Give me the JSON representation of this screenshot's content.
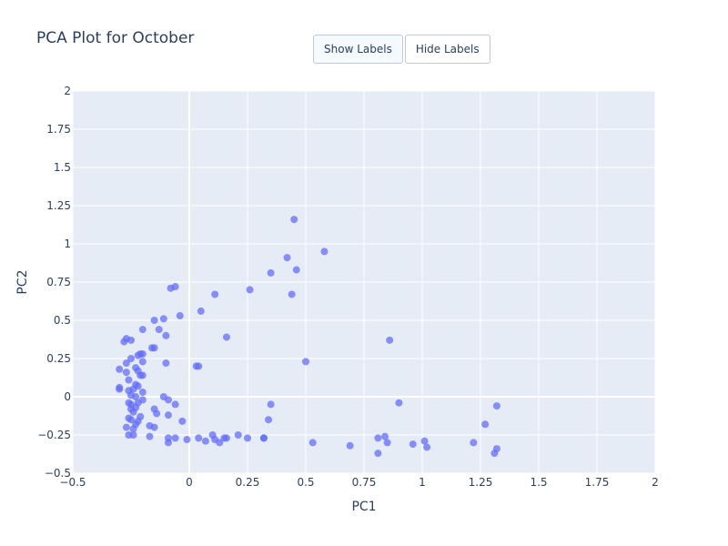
{
  "title": "PCA Plot for October",
  "buttons": [
    {
      "label": "Show Labels",
      "active": true
    },
    {
      "label": "Hide Labels",
      "active": false
    }
  ],
  "colors": {
    "plot_bg": "#e5ecf6",
    "grid": "#ffffff",
    "marker": "#636efa",
    "text": "#2a3f5f"
  },
  "chart_data": {
    "type": "scatter",
    "title": "PCA Plot for October",
    "xlabel": "PC1",
    "ylabel": "PC2",
    "xlim": [
      -0.5,
      2
    ],
    "ylim": [
      -0.5,
      2
    ],
    "grid": true,
    "xticks": [
      -0.5,
      0,
      0.5,
      1,
      1.5,
      2
    ],
    "xtick_labels": [
      "−0.5",
      "0",
      "0.25",
      "0.5",
      "0.75",
      "1",
      "1.25",
      "1.5",
      "1.75",
      "2"
    ],
    "xtick_values": [
      -0.5,
      0,
      0.25,
      0.5,
      0.75,
      1,
      1.25,
      1.5,
      1.75,
      2
    ],
    "ytick_labels": [
      "−0.5",
      "−0.25",
      "0",
      "0.25",
      "0.5",
      "0.75",
      "1",
      "1.25",
      "1.5",
      "1.75",
      "2"
    ],
    "ytick_values": [
      -0.5,
      -0.25,
      0,
      0.25,
      0.5,
      0.75,
      1,
      1.25,
      1.5,
      1.75,
      2
    ],
    "series": [
      {
        "points": [
          [
            0.45,
            1.16
          ],
          [
            0.58,
            0.95
          ],
          [
            0.42,
            0.91
          ],
          [
            0.46,
            0.83
          ],
          [
            0.35,
            0.81
          ],
          [
            0.44,
            0.67
          ],
          [
            0.26,
            0.7
          ],
          [
            0.11,
            0.67
          ],
          [
            -0.06,
            0.72
          ],
          [
            -0.08,
            0.71
          ],
          [
            0.05,
            0.56
          ],
          [
            -0.04,
            0.53
          ],
          [
            -0.11,
            0.51
          ],
          [
            -0.15,
            0.5
          ],
          [
            -0.2,
            0.44
          ],
          [
            -0.13,
            0.44
          ],
          [
            -0.1,
            0.4
          ],
          [
            0.16,
            0.39
          ],
          [
            0.86,
            0.37
          ],
          [
            -0.28,
            0.36
          ],
          [
            -0.27,
            0.38
          ],
          [
            -0.25,
            0.37
          ],
          [
            -0.15,
            0.32
          ],
          [
            -0.16,
            0.32
          ],
          [
            -0.21,
            0.28
          ],
          [
            -0.2,
            0.28
          ],
          [
            -0.22,
            0.27
          ],
          [
            -0.25,
            0.25
          ],
          [
            -0.27,
            0.22
          ],
          [
            -0.2,
            0.23
          ],
          [
            -0.1,
            0.22
          ],
          [
            0.5,
            0.23
          ],
          [
            0.03,
            0.2
          ],
          [
            0.04,
            0.2
          ],
          [
            -0.23,
            0.19
          ],
          [
            -0.3,
            0.18
          ],
          [
            -0.22,
            0.17
          ],
          [
            -0.27,
            0.16
          ],
          [
            -0.21,
            0.14
          ],
          [
            -0.2,
            0.14
          ],
          [
            -0.26,
            0.11
          ],
          [
            -0.23,
            0.08
          ],
          [
            -0.22,
            0.07
          ],
          [
            -0.3,
            0.06
          ],
          [
            -0.3,
            0.05
          ],
          [
            -0.24,
            0.05
          ],
          [
            -0.26,
            0.04
          ],
          [
            -0.2,
            0.03
          ],
          [
            -0.25,
            0.01
          ],
          [
            -0.23,
            0.0
          ],
          [
            -0.11,
            0.0
          ],
          [
            -0.09,
            -0.02
          ],
          [
            -0.06,
            -0.05
          ],
          [
            -0.2,
            -0.02
          ],
          [
            -0.22,
            -0.04
          ],
          [
            -0.26,
            -0.04
          ],
          [
            -0.25,
            -0.05
          ],
          [
            -0.23,
            -0.07
          ],
          [
            -0.25,
            -0.08
          ],
          [
            -0.15,
            -0.08
          ],
          [
            -0.24,
            -0.1
          ],
          [
            -0.14,
            -0.11
          ],
          [
            -0.09,
            -0.12
          ],
          [
            -0.21,
            -0.13
          ],
          [
            -0.26,
            -0.14
          ],
          [
            -0.25,
            -0.15
          ],
          [
            -0.22,
            -0.16
          ],
          [
            -0.03,
            -0.16
          ],
          [
            -0.23,
            -0.18
          ],
          [
            -0.17,
            -0.19
          ],
          [
            -0.15,
            -0.2
          ],
          [
            -0.24,
            -0.21
          ],
          [
            -0.27,
            -0.2
          ],
          [
            -0.26,
            -0.25
          ],
          [
            -0.24,
            -0.25
          ],
          [
            -0.17,
            -0.26
          ],
          [
            -0.09,
            -0.27
          ],
          [
            -0.06,
            -0.27
          ],
          [
            -0.01,
            -0.28
          ],
          [
            -0.09,
            -0.3
          ],
          [
            0.04,
            -0.27
          ],
          [
            0.07,
            -0.29
          ],
          [
            0.1,
            -0.25
          ],
          [
            0.11,
            -0.28
          ],
          [
            0.13,
            -0.3
          ],
          [
            0.15,
            -0.27
          ],
          [
            0.16,
            -0.27
          ],
          [
            0.21,
            -0.25
          ],
          [
            0.25,
            -0.27
          ],
          [
            0.32,
            -0.27
          ],
          [
            0.32,
            -0.27
          ],
          [
            0.35,
            -0.05
          ],
          [
            0.34,
            -0.15
          ],
          [
            0.53,
            -0.3
          ],
          [
            0.69,
            -0.32
          ],
          [
            0.81,
            -0.27
          ],
          [
            0.84,
            -0.26
          ],
          [
            0.85,
            -0.3
          ],
          [
            0.81,
            -0.37
          ],
          [
            0.9,
            -0.04
          ],
          [
            0.96,
            -0.31
          ],
          [
            1.01,
            -0.29
          ],
          [
            1.02,
            -0.33
          ],
          [
            1.22,
            -0.3
          ],
          [
            1.27,
            -0.18
          ],
          [
            1.32,
            -0.06
          ],
          [
            1.31,
            -0.37
          ],
          [
            1.32,
            -0.34
          ]
        ]
      }
    ]
  }
}
